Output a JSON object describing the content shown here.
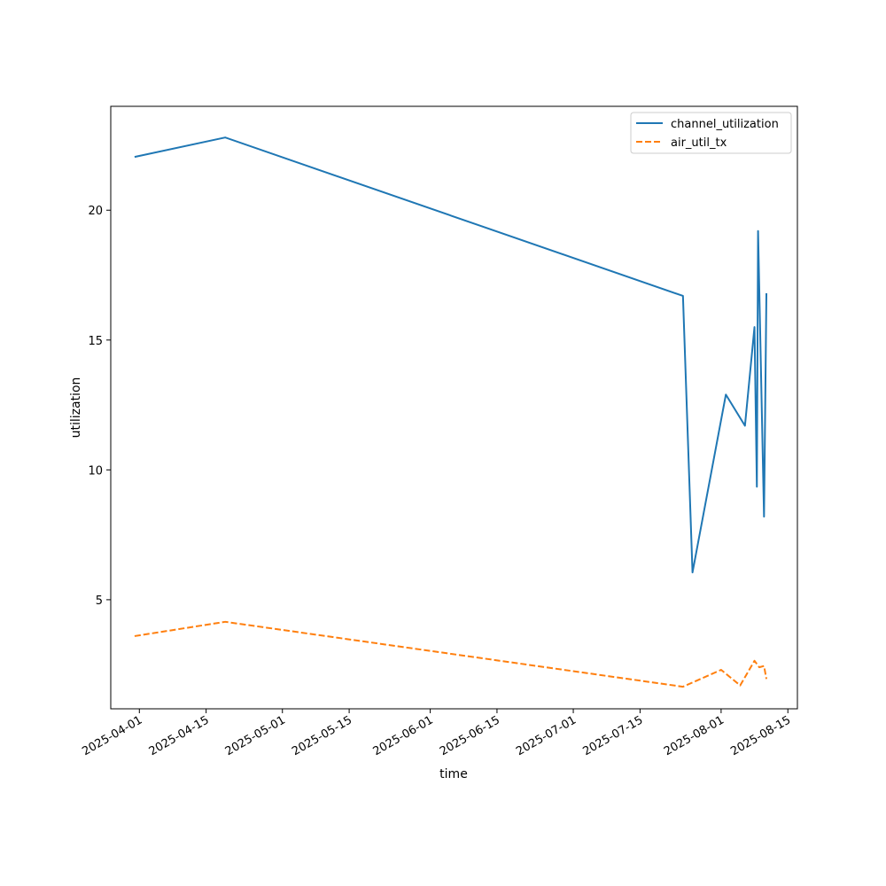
{
  "chart_data": {
    "type": "line",
    "title": "",
    "xlabel": "time",
    "ylabel": "utilization",
    "x_axis_type": "date",
    "xlim": [
      "2025-03-26",
      "2025-08-17"
    ],
    "ylim": [
      0.8,
      24.0
    ],
    "xticks": [
      "2025-04-01",
      "2025-04-15",
      "2025-05-01",
      "2025-05-15",
      "2025-06-01",
      "2025-06-15",
      "2025-07-01",
      "2025-07-15",
      "2025-08-01",
      "2025-08-15"
    ],
    "yticks": [
      5,
      10,
      15,
      20
    ],
    "grid": false,
    "legend_position": "top-right",
    "series": [
      {
        "name": "channel_utilization",
        "color": "#1f77b4",
        "line_style": "solid",
        "x": [
          "2025-03-31",
          "2025-04-19",
          "2025-07-24",
          "2025-07-26",
          "2025-08-02",
          "2025-08-06",
          "2025-08-08",
          "2025-08-08 12:00",
          "2025-08-08 18:00",
          "2025-08-10",
          "2025-08-10 12:00"
        ],
        "y": [
          22.05,
          22.8,
          16.7,
          6.05,
          12.9,
          11.7,
          15.5,
          9.35,
          19.2,
          8.2,
          16.8
        ]
      },
      {
        "name": "air_util_tx",
        "color": "#ff7f0e",
        "line_style": "dashed",
        "x": [
          "2025-03-31",
          "2025-04-19",
          "2025-07-24",
          "2025-08-01",
          "2025-08-05",
          "2025-08-08",
          "2025-08-09",
          "2025-08-10",
          "2025-08-10 12:00"
        ],
        "y": [
          3.6,
          4.15,
          1.65,
          2.3,
          1.7,
          2.65,
          2.4,
          2.45,
          1.95
        ]
      }
    ]
  }
}
